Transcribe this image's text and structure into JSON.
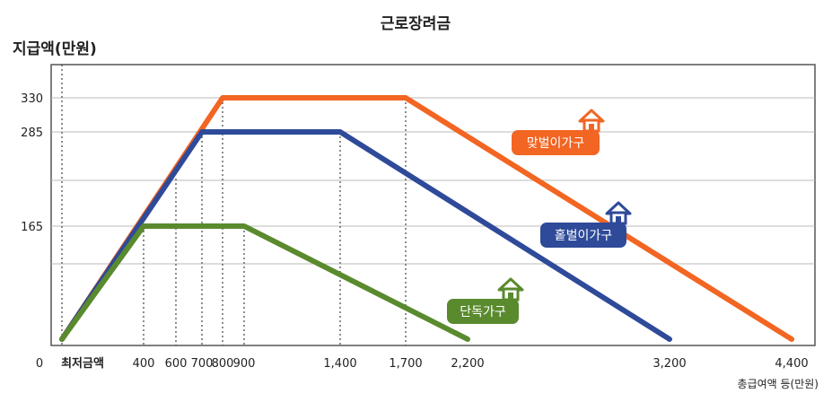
{
  "chart_data": {
    "type": "line",
    "title": "근로장려금",
    "ylabel": "지급액(만원)",
    "xlabel": "총급여액 등(만원)",
    "y_ticks": [
      330,
      285,
      165
    ],
    "y_origin_label": "0",
    "x_ticks": [
      {
        "value": 0,
        "label": "최저금액"
      },
      {
        "value": 400,
        "label": "400"
      },
      {
        "value": 600,
        "label": "600"
      },
      {
        "value": 700,
        "label": "700"
      },
      {
        "value": 800,
        "label": "800"
      },
      {
        "value": 900,
        "label": "900"
      },
      {
        "value": 1400,
        "label": "1,400"
      },
      {
        "value": 1700,
        "label": "1,700"
      },
      {
        "value": 2200,
        "label": "2,200"
      },
      {
        "value": 3200,
        "label": "3,200"
      },
      {
        "value": 4400,
        "label": "4,400"
      }
    ],
    "series": [
      {
        "name": "맞벌이가구",
        "color": "#f26522",
        "points": [
          [
            0,
            0
          ],
          [
            800,
            330
          ],
          [
            1700,
            330
          ],
          [
            4400,
            0
          ]
        ]
      },
      {
        "name": "홑벌이가구",
        "color": "#2e4a99",
        "points": [
          [
            0,
            0
          ],
          [
            700,
            285
          ],
          [
            1400,
            285
          ],
          [
            3200,
            0
          ]
        ]
      },
      {
        "name": "단독가구",
        "color": "#5a8a2e",
        "points": [
          [
            0,
            0
          ],
          [
            400,
            165
          ],
          [
            900,
            165
          ],
          [
            2200,
            0
          ]
        ]
      }
    ]
  }
}
